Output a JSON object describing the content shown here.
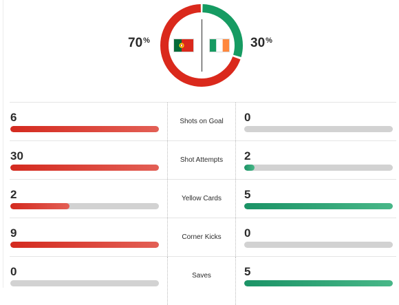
{
  "possession": {
    "home_value": "70",
    "home_symbol": "%",
    "away_value": "30",
    "away_symbol": "%",
    "home_fraction": 0.7,
    "away_fraction": 0.3,
    "home_color": "#da291c",
    "away_color": "#169b62"
  },
  "teams": {
    "home_flag": "portugal-flag-icon",
    "away_flag": "ireland-flag-icon"
  },
  "stats": [
    {
      "label": "Shots on Goal",
      "home": "6",
      "away": "0",
      "home_fill": 1.0,
      "away_fill": 0.0
    },
    {
      "label": "Shot Attempts",
      "home": "30",
      "away": "2",
      "home_fill": 1.0,
      "away_fill": 0.07
    },
    {
      "label": "Yellow Cards",
      "home": "2",
      "away": "5",
      "home_fill": 0.4,
      "away_fill": 1.0
    },
    {
      "label": "Corner Kicks",
      "home": "9",
      "away": "0",
      "home_fill": 1.0,
      "away_fill": 0.0
    },
    {
      "label": "Saves",
      "home": "0",
      "away": "5",
      "home_fill": 0.0,
      "away_fill": 1.0
    }
  ]
}
